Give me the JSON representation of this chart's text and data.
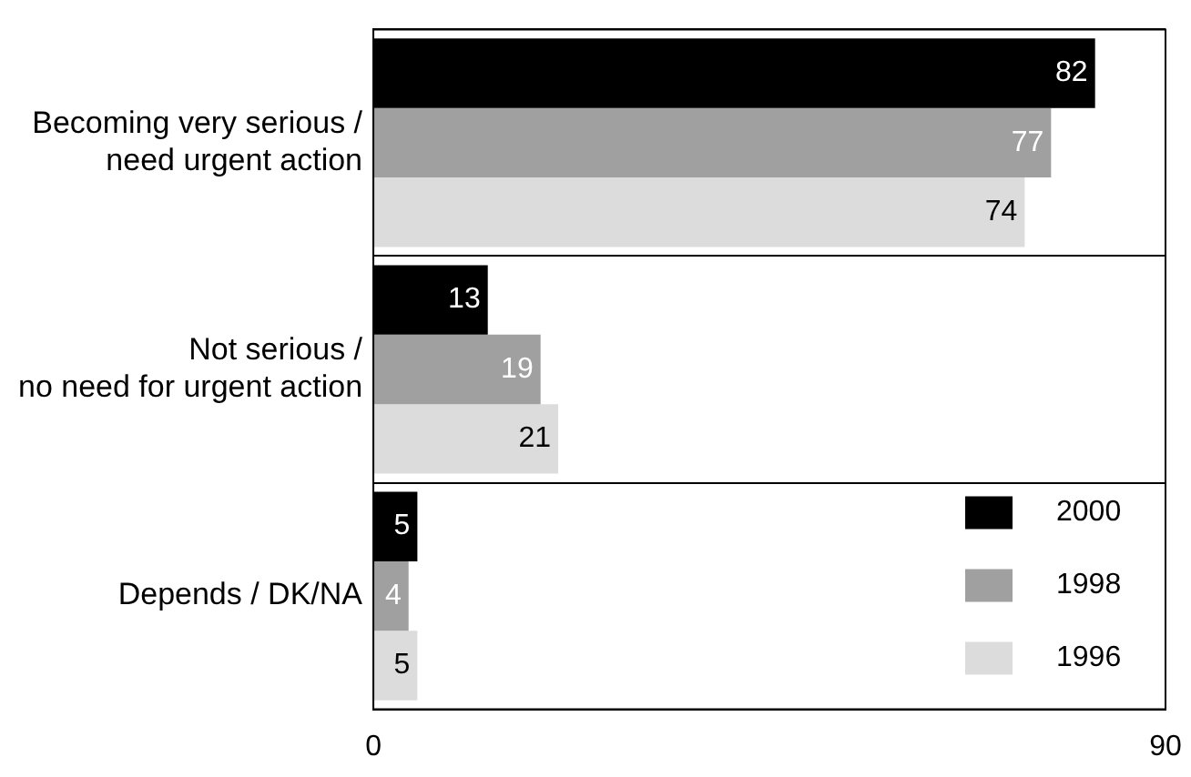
{
  "chart_data": {
    "type": "bar",
    "orientation": "horizontal",
    "categories": [
      "Becoming very serious / need urgent action",
      "Not serious / no need for urgent action",
      "Depends / DK/NA"
    ],
    "series": [
      {
        "name": "2000",
        "color": "#000000",
        "values": [
          82,
          13,
          5
        ]
      },
      {
        "name": "1998",
        "color": "#a0a0a0",
        "values": [
          77,
          19,
          4
        ]
      },
      {
        "name": "1996",
        "color": "#dcdcdc",
        "values": [
          74,
          21,
          5
        ]
      }
    ],
    "xlim": [
      0,
      90
    ],
    "xticks": [
      0,
      90
    ],
    "data_labels": true,
    "grid": "y",
    "legend": "bottom right"
  }
}
